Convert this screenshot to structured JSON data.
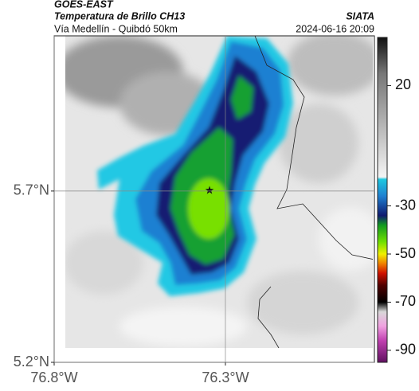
{
  "header": {
    "source": "GOES-EAST",
    "title": "Temperatura de Brillo CH13",
    "agency": "SIATA",
    "subtitle": "Vía Medellín - Quibdó 50km",
    "timestamp": "2024-06-16 20:09"
  },
  "map": {
    "xlim": [
      -76.8,
      -75.865
    ],
    "ylim": [
      5.2,
      6.153
    ],
    "xticks": [
      {
        "value": -76.8,
        "label": "76.8°W"
      },
      {
        "value": -76.3,
        "label": "76.3°W"
      }
    ],
    "yticks": [
      {
        "value": 5.7,
        "label": "5.7°N"
      },
      {
        "value": 5.2,
        "label": "5.2°N"
      }
    ],
    "grid": true
  },
  "colorbar": {
    "lim": [
      -95,
      40
    ],
    "ticks": [
      20,
      -30,
      -50,
      -70,
      -90
    ],
    "stops": [
      {
        "value": 40,
        "color": "#111111"
      },
      {
        "value": 25,
        "color": "#777777"
      },
      {
        "value": -18,
        "color": "#f4f4f4"
      },
      {
        "value": -19,
        "color": "#1ec8e0"
      },
      {
        "value": -26,
        "color": "#1f7fd0"
      },
      {
        "value": -34,
        "color": "#101a70"
      },
      {
        "value": -38,
        "color": "#109a20"
      },
      {
        "value": -45,
        "color": "#70e000"
      },
      {
        "value": -50,
        "color": "#f0f000"
      },
      {
        "value": -54,
        "color": "#f08000"
      },
      {
        "value": -58,
        "color": "#d01000"
      },
      {
        "value": -63,
        "color": "#500000"
      },
      {
        "value": -70,
        "color": "#000000"
      },
      {
        "value": -74,
        "color": "#d8d8d8"
      },
      {
        "value": -80,
        "color": "#f0a0e0"
      },
      {
        "value": -86,
        "color": "#c040b0"
      },
      {
        "value": -95,
        "color": "#601060"
      }
    ]
  }
}
